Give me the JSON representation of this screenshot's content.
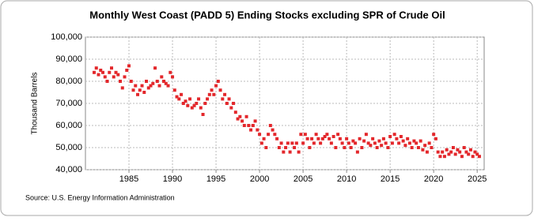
{
  "chart_data": {
    "type": "scatter",
    "title": "Monthly West Coast (PADD 5) Ending Stocks excluding SPR of Crude Oil",
    "y_label": "Thousand Barrels",
    "source": "Source: U.S. Energy Information Administration",
    "color": "#e3272b",
    "xlim": [
      1980,
      2025.8
    ],
    "xticks": [
      1985,
      1990,
      1995,
      2000,
      2005,
      2010,
      2015,
      2020,
      2025
    ],
    "ylim": [
      40000,
      100000
    ],
    "yticks": [
      {
        "value": 40000,
        "label": "40,000"
      },
      {
        "value": 50000,
        "label": "50,000"
      },
      {
        "value": 60000,
        "label": "60,000"
      },
      {
        "value": 70000,
        "label": "70,000"
      },
      {
        "value": 80000,
        "label": "80,000"
      },
      {
        "value": 90000,
        "label": "90,000"
      },
      {
        "value": 100000,
        "label": "100,000"
      }
    ],
    "grid": true,
    "x": [
      1981,
      1981.25,
      1981.5,
      1981.75,
      1982,
      1982.25,
      1982.5,
      1982.75,
      1983,
      1983.25,
      1983.5,
      1983.75,
      1984,
      1984.25,
      1984.5,
      1984.75,
      1985,
      1985.25,
      1985.5,
      1985.75,
      1986,
      1986.25,
      1986.5,
      1986.75,
      1987,
      1987.25,
      1987.5,
      1987.75,
      1988,
      1988.25,
      1988.5,
      1988.75,
      1989,
      1989.25,
      1989.5,
      1989.75,
      1990,
      1990.25,
      1990.5,
      1990.75,
      1991,
      1991.25,
      1991.5,
      1991.75,
      1992,
      1992.25,
      1992.5,
      1992.75,
      1993,
      1993.25,
      1993.5,
      1993.75,
      1994,
      1994.25,
      1994.5,
      1994.75,
      1995,
      1995.25,
      1995.5,
      1995.75,
      1996,
      1996.25,
      1996.5,
      1996.75,
      1997,
      1997.25,
      1997.5,
      1997.75,
      1998,
      1998.25,
      1998.5,
      1998.75,
      1999,
      1999.25,
      1999.5,
      1999.75,
      2000,
      2000.25,
      2000.5,
      2000.75,
      2001,
      2001.25,
      2001.5,
      2001.75,
      2002,
      2002.25,
      2002.5,
      2002.75,
      2003,
      2003.25,
      2003.5,
      2003.75,
      2004,
      2004.25,
      2004.5,
      2004.75,
      2005,
      2005.25,
      2005.5,
      2005.75,
      2006,
      2006.25,
      2006.5,
      2006.75,
      2007,
      2007.25,
      2007.5,
      2007.75,
      2008,
      2008.25,
      2008.5,
      2008.75,
      2009,
      2009.25,
      2009.5,
      2009.75,
      2010,
      2010.25,
      2010.5,
      2010.75,
      2011,
      2011.25,
      2011.5,
      2011.75,
      2012,
      2012.25,
      2012.5,
      2012.75,
      2013,
      2013.25,
      2013.5,
      2013.75,
      2014,
      2014.25,
      2014.5,
      2014.75,
      2015,
      2015.25,
      2015.5,
      2015.75,
      2016,
      2016.25,
      2016.5,
      2016.75,
      2017,
      2017.25,
      2017.5,
      2017.75,
      2018,
      2018.25,
      2018.5,
      2018.75,
      2019,
      2019.25,
      2019.5,
      2019.75,
      2020,
      2020.25,
      2020.5,
      2020.75,
      2021,
      2021.25,
      2021.5,
      2021.75,
      2022,
      2022.25,
      2022.5,
      2022.75,
      2023,
      2023.25,
      2023.5,
      2023.75,
      2024,
      2024.25,
      2024.5,
      2024.75,
      2025,
      2025.25
    ],
    "values": [
      84000,
      86000,
      83000,
      85000,
      84000,
      82000,
      80000,
      84000,
      86000,
      82000,
      84000,
      83000,
      80000,
      77000,
      82000,
      85000,
      87000,
      80000,
      76000,
      78000,
      74000,
      76000,
      78000,
      75000,
      80000,
      77000,
      78000,
      79000,
      86000,
      80000,
      78000,
      82000,
      80000,
      79000,
      78000,
      84000,
      82000,
      76000,
      73000,
      72000,
      74000,
      70000,
      71000,
      69000,
      72000,
      68000,
      69000,
      70000,
      72000,
      68000,
      65000,
      70000,
      72000,
      74000,
      76000,
      74000,
      78000,
      80000,
      76000,
      72000,
      74000,
      70000,
      72000,
      68000,
      70000,
      66000,
      63000,
      64000,
      62000,
      60000,
      64000,
      60000,
      58000,
      60000,
      62000,
      58000,
      56000,
      52000,
      54000,
      50000,
      56000,
      60000,
      58000,
      56000,
      54000,
      50000,
      52000,
      48000,
      50000,
      52000,
      48000,
      52000,
      50000,
      52000,
      48000,
      56000,
      52000,
      56000,
      54000,
      50000,
      54000,
      52000,
      56000,
      54000,
      52000,
      54000,
      55000,
      56000,
      54000,
      52000,
      55000,
      50000,
      56000,
      54000,
      52000,
      50000,
      54000,
      52000,
      50000,
      53000,
      52000,
      48000,
      54000,
      50000,
      53000,
      56000,
      52000,
      51000,
      54000,
      52000,
      50000,
      53000,
      51000,
      54000,
      52000,
      50000,
      55000,
      52000,
      56000,
      54000,
      52000,
      55000,
      53000,
      51000,
      54000,
      52000,
      50000,
      53000,
      52000,
      50000,
      53000,
      49000,
      51000,
      48000,
      52000,
      50000,
      56000,
      54000,
      48000,
      46000,
      48000,
      46000,
      49000,
      47000,
      48000,
      50000,
      47000,
      49000,
      48000,
      46000,
      50000,
      48000,
      47000,
      49000,
      46000,
      48000,
      47000,
      46000
    ]
  }
}
